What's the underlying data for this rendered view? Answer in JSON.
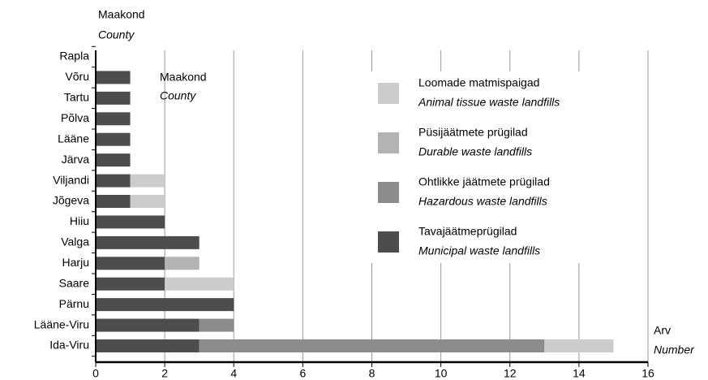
{
  "chart_data": {
    "type": "stacked_barh",
    "y_label": {
      "et": "Maakond",
      "en": "County"
    },
    "x_label": {
      "et": "Arv",
      "en": "Number"
    },
    "categories": [
      "Rapla",
      "Võru",
      "Tartu",
      "Põlva",
      "Lääne",
      "Järva",
      "Viljandi",
      "Jõgeva",
      "Hiiu",
      "Valga",
      "Harju",
      "Saare",
      "Pärnu",
      "Lääne-Viru",
      "Ida-Viru"
    ],
    "series": [
      {
        "name": "Tavajäätmeprügilad",
        "name_en": "Municipal waste landfills",
        "color": "#4d4d4d",
        "values": [
          0,
          1,
          1,
          1,
          1,
          1,
          1,
          1,
          2,
          3,
          2,
          2,
          4,
          3,
          3
        ]
      },
      {
        "name": "Ohtlikke jäätmete prügilad",
        "name_en": "Hazardous waste landfills",
        "color": "#8c8c8c",
        "values": [
          0,
          0,
          0,
          0,
          0,
          0,
          0,
          0,
          0,
          0,
          0,
          0,
          0,
          1,
          10
        ]
      },
      {
        "name": "Püsijäätmete prügilad",
        "name_en": "Durable waste landfills",
        "color": "#b3b3b3",
        "values": [
          0,
          0,
          0,
          0,
          0,
          0,
          0,
          0,
          0,
          0,
          1,
          0,
          0,
          0,
          0
        ]
      },
      {
        "name": "Loomade matmispaigad",
        "name_en": "Animal tissue waste landfills",
        "color": "#cccccc",
        "values": [
          0,
          0,
          0,
          0,
          0,
          0,
          1,
          1,
          0,
          0,
          0,
          2,
          0,
          0,
          2
        ]
      }
    ],
    "xlim": [
      0,
      16
    ],
    "xticks": [
      0,
      2,
      4,
      6,
      8,
      10,
      12,
      14,
      16
    ],
    "grid": true
  }
}
